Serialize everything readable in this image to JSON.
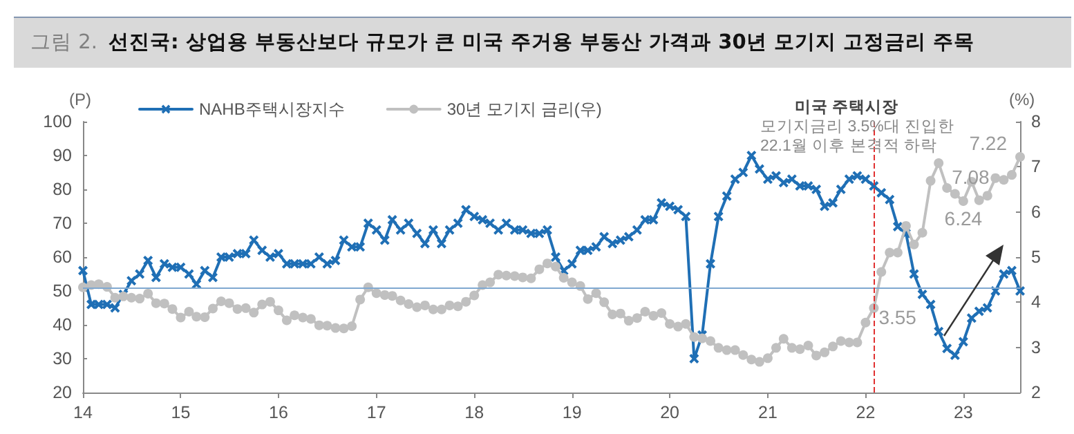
{
  "chart_data": {
    "type": "line",
    "title": "그림 2.  선진국: 상업용 부동산보다 규모가 큰 미국 주거용 부동산 가격과 30년 모기지 고정금리 주목",
    "ylabel": "(P)",
    "y2label": "(%)",
    "annotations": [
      "미국 주택시장",
      "모기지금리 3.5%대 진입한",
      "22.1월 이후 본격적 하락"
    ],
    "x": [
      "2014-01",
      "2014-02",
      "2014-03",
      "2014-04",
      "2014-05",
      "2014-06",
      "2014-07",
      "2014-08",
      "2014-09",
      "2014-10",
      "2014-11",
      "2014-12",
      "2015-01",
      "2015-02",
      "2015-03",
      "2015-04",
      "2015-05",
      "2015-06",
      "2015-07",
      "2015-08",
      "2015-09",
      "2015-10",
      "2015-11",
      "2015-12",
      "2016-01",
      "2016-02",
      "2016-03",
      "2016-04",
      "2016-05",
      "2016-06",
      "2016-07",
      "2016-08",
      "2016-09",
      "2016-10",
      "2016-11",
      "2016-12",
      "2017-01",
      "2017-02",
      "2017-03",
      "2017-04",
      "2017-05",
      "2017-06",
      "2017-07",
      "2017-08",
      "2017-09",
      "2017-10",
      "2017-11",
      "2017-12",
      "2018-01",
      "2018-02",
      "2018-03",
      "2018-04",
      "2018-05",
      "2018-06",
      "2018-07",
      "2018-08",
      "2018-09",
      "2018-10",
      "2018-11",
      "2018-12",
      "2019-01",
      "2019-02",
      "2019-03",
      "2019-04",
      "2019-05",
      "2019-06",
      "2019-07",
      "2019-08",
      "2019-09",
      "2019-10",
      "2019-11",
      "2019-12",
      "2020-01",
      "2020-02",
      "2020-03",
      "2020-04",
      "2020-05",
      "2020-06",
      "2020-07",
      "2020-08",
      "2020-09",
      "2020-10",
      "2020-11",
      "2020-12",
      "2021-01",
      "2021-02",
      "2021-03",
      "2021-04",
      "2021-05",
      "2021-06",
      "2021-07",
      "2021-08",
      "2021-09",
      "2021-10",
      "2021-11",
      "2021-12",
      "2022-01",
      "2022-02",
      "2022-03",
      "2022-04",
      "2022-05",
      "2022-06",
      "2022-07",
      "2022-08",
      "2022-09",
      "2022-10",
      "2022-11",
      "2022-12",
      "2023-01",
      "2023-02",
      "2023-03",
      "2023-04",
      "2023-05",
      "2023-06",
      "2023-07",
      "2023-08"
    ],
    "series": [
      {
        "name": "NAHB주택시장지수",
        "color": "#1f6fb5",
        "marker": "cross",
        "values": [
          56,
          46,
          46,
          46,
          45,
          49,
          53,
          55,
          59,
          54,
          58,
          57,
          57,
          55,
          52,
          56,
          54,
          60,
          60,
          61,
          61,
          65,
          62,
          60,
          61,
          58,
          58,
          58,
          58,
          60,
          58,
          59,
          65,
          63,
          63,
          70,
          68,
          65,
          71,
          68,
          70,
          67,
          64,
          68,
          64,
          68,
          70,
          74,
          72,
          71,
          70,
          68,
          70,
          68,
          68,
          67,
          67,
          68,
          60,
          56,
          58,
          62,
          62,
          63,
          66,
          64,
          65,
          66,
          68,
          71,
          71,
          76,
          75,
          74,
          72,
          30,
          37,
          58,
          72,
          78,
          83,
          85,
          90,
          86,
          83,
          84,
          82,
          83,
          81,
          81,
          80,
          75,
          76,
          80,
          83,
          84,
          83,
          81,
          79,
          77,
          69,
          67,
          55,
          49,
          46,
          38,
          33,
          31,
          35,
          42,
          44,
          45,
          50,
          55,
          56,
          50
        ]
      },
      {
        "name": "30년 모기지 금리(우)",
        "color": "#c0c0c0",
        "marker": "circle",
        "axis": "y2",
        "values": [
          4.33,
          4.38,
          4.4,
          4.34,
          4.1,
          4.13,
          4.1,
          4.08,
          4.19,
          3.98,
          3.97,
          3.85,
          3.66,
          3.79,
          3.68,
          3.67,
          3.86,
          4.02,
          3.98,
          3.85,
          3.87,
          3.77,
          3.95,
          4.01,
          3.82,
          3.6,
          3.71,
          3.66,
          3.63,
          3.49,
          3.48,
          3.43,
          3.42,
          3.47,
          4.06,
          4.33,
          4.2,
          4.16,
          4.14,
          4.04,
          3.96,
          3.89,
          3.93,
          3.84,
          3.84,
          3.93,
          3.91,
          4.01,
          4.15,
          4.38,
          4.44,
          4.61,
          4.59,
          4.58,
          4.55,
          4.53,
          4.73,
          4.86,
          4.79,
          4.54,
          4.44,
          4.36,
          4.07,
          4.2,
          4.0,
          3.73,
          3.75,
          3.59,
          3.65,
          3.79,
          3.7,
          3.76,
          3.52,
          3.46,
          3.52,
          3.23,
          3.2,
          3.14,
          2.99,
          2.94,
          2.94,
          2.83,
          2.73,
          2.68,
          2.76,
          2.99,
          3.19,
          2.99,
          2.96,
          3.04,
          2.82,
          2.89,
          3.02,
          3.14,
          3.11,
          3.11,
          3.55,
          3.87,
          4.67,
          5.1,
          5.1,
          5.69,
          5.28,
          5.54,
          6.69,
          7.08,
          6.53,
          6.4,
          6.24,
          6.67,
          6.26,
          6.36,
          6.75,
          6.71,
          6.82,
          7.22
        ],
        "value_labels": [
          null,
          null,
          null,
          null,
          null,
          null,
          null,
          null,
          null,
          null,
          null,
          null,
          null,
          null,
          null,
          null,
          null,
          null,
          null,
          null,
          null,
          null,
          null,
          null,
          null,
          null,
          null,
          null,
          null,
          null,
          null,
          null,
          null,
          null,
          null,
          null,
          null,
          null,
          null,
          null,
          null,
          null,
          null,
          null,
          null,
          null,
          null,
          null,
          null,
          null,
          null,
          null,
          null,
          null,
          null,
          null,
          null,
          null,
          null,
          null,
          null,
          null,
          null,
          null,
          null,
          null,
          null,
          null,
          null,
          null,
          null,
          null,
          null,
          null,
          null,
          null,
          null,
          null,
          null,
          null,
          null,
          null,
          null,
          null,
          null,
          null,
          null,
          null,
          null,
          null,
          null,
          null,
          null,
          null,
          null,
          null,
          "3.55",
          null,
          null,
          null,
          null,
          null,
          null,
          null,
          null,
          "7.08",
          null,
          null,
          "6.24",
          null,
          null,
          null,
          null,
          null,
          null,
          "7.22"
        ]
      }
    ],
    "xlim": [
      "2014-01",
      "2023-08"
    ],
    "xticks": [
      {
        "value": "2014-01",
        "label": "14"
      },
      {
        "value": "2015-01",
        "label": "15"
      },
      {
        "value": "2016-01",
        "label": "16"
      },
      {
        "value": "2017-01",
        "label": "17"
      },
      {
        "value": "2018-01",
        "label": "18"
      },
      {
        "value": "2019-01",
        "label": "19"
      },
      {
        "value": "2020-01",
        "label": "20"
      },
      {
        "value": "2021-01",
        "label": "21"
      },
      {
        "value": "2022-01",
        "label": "22"
      },
      {
        "value": "2023-01",
        "label": "23"
      }
    ],
    "ylim": [
      20,
      100
    ],
    "yticks": [
      20,
      30,
      40,
      50,
      60,
      70,
      80,
      90,
      100
    ],
    "y2lim": [
      2,
      8
    ],
    "y2ticks": [
      2,
      3,
      4,
      5,
      6,
      7,
      8
    ],
    "ref_lines": [
      {
        "axis": "y",
        "value": 51,
        "color": "#7fa8d0"
      },
      {
        "axis": "x",
        "value": "2022-02",
        "color": "#e03030",
        "line_style": "dashed"
      }
    ],
    "grid": false,
    "legend": "top"
  }
}
